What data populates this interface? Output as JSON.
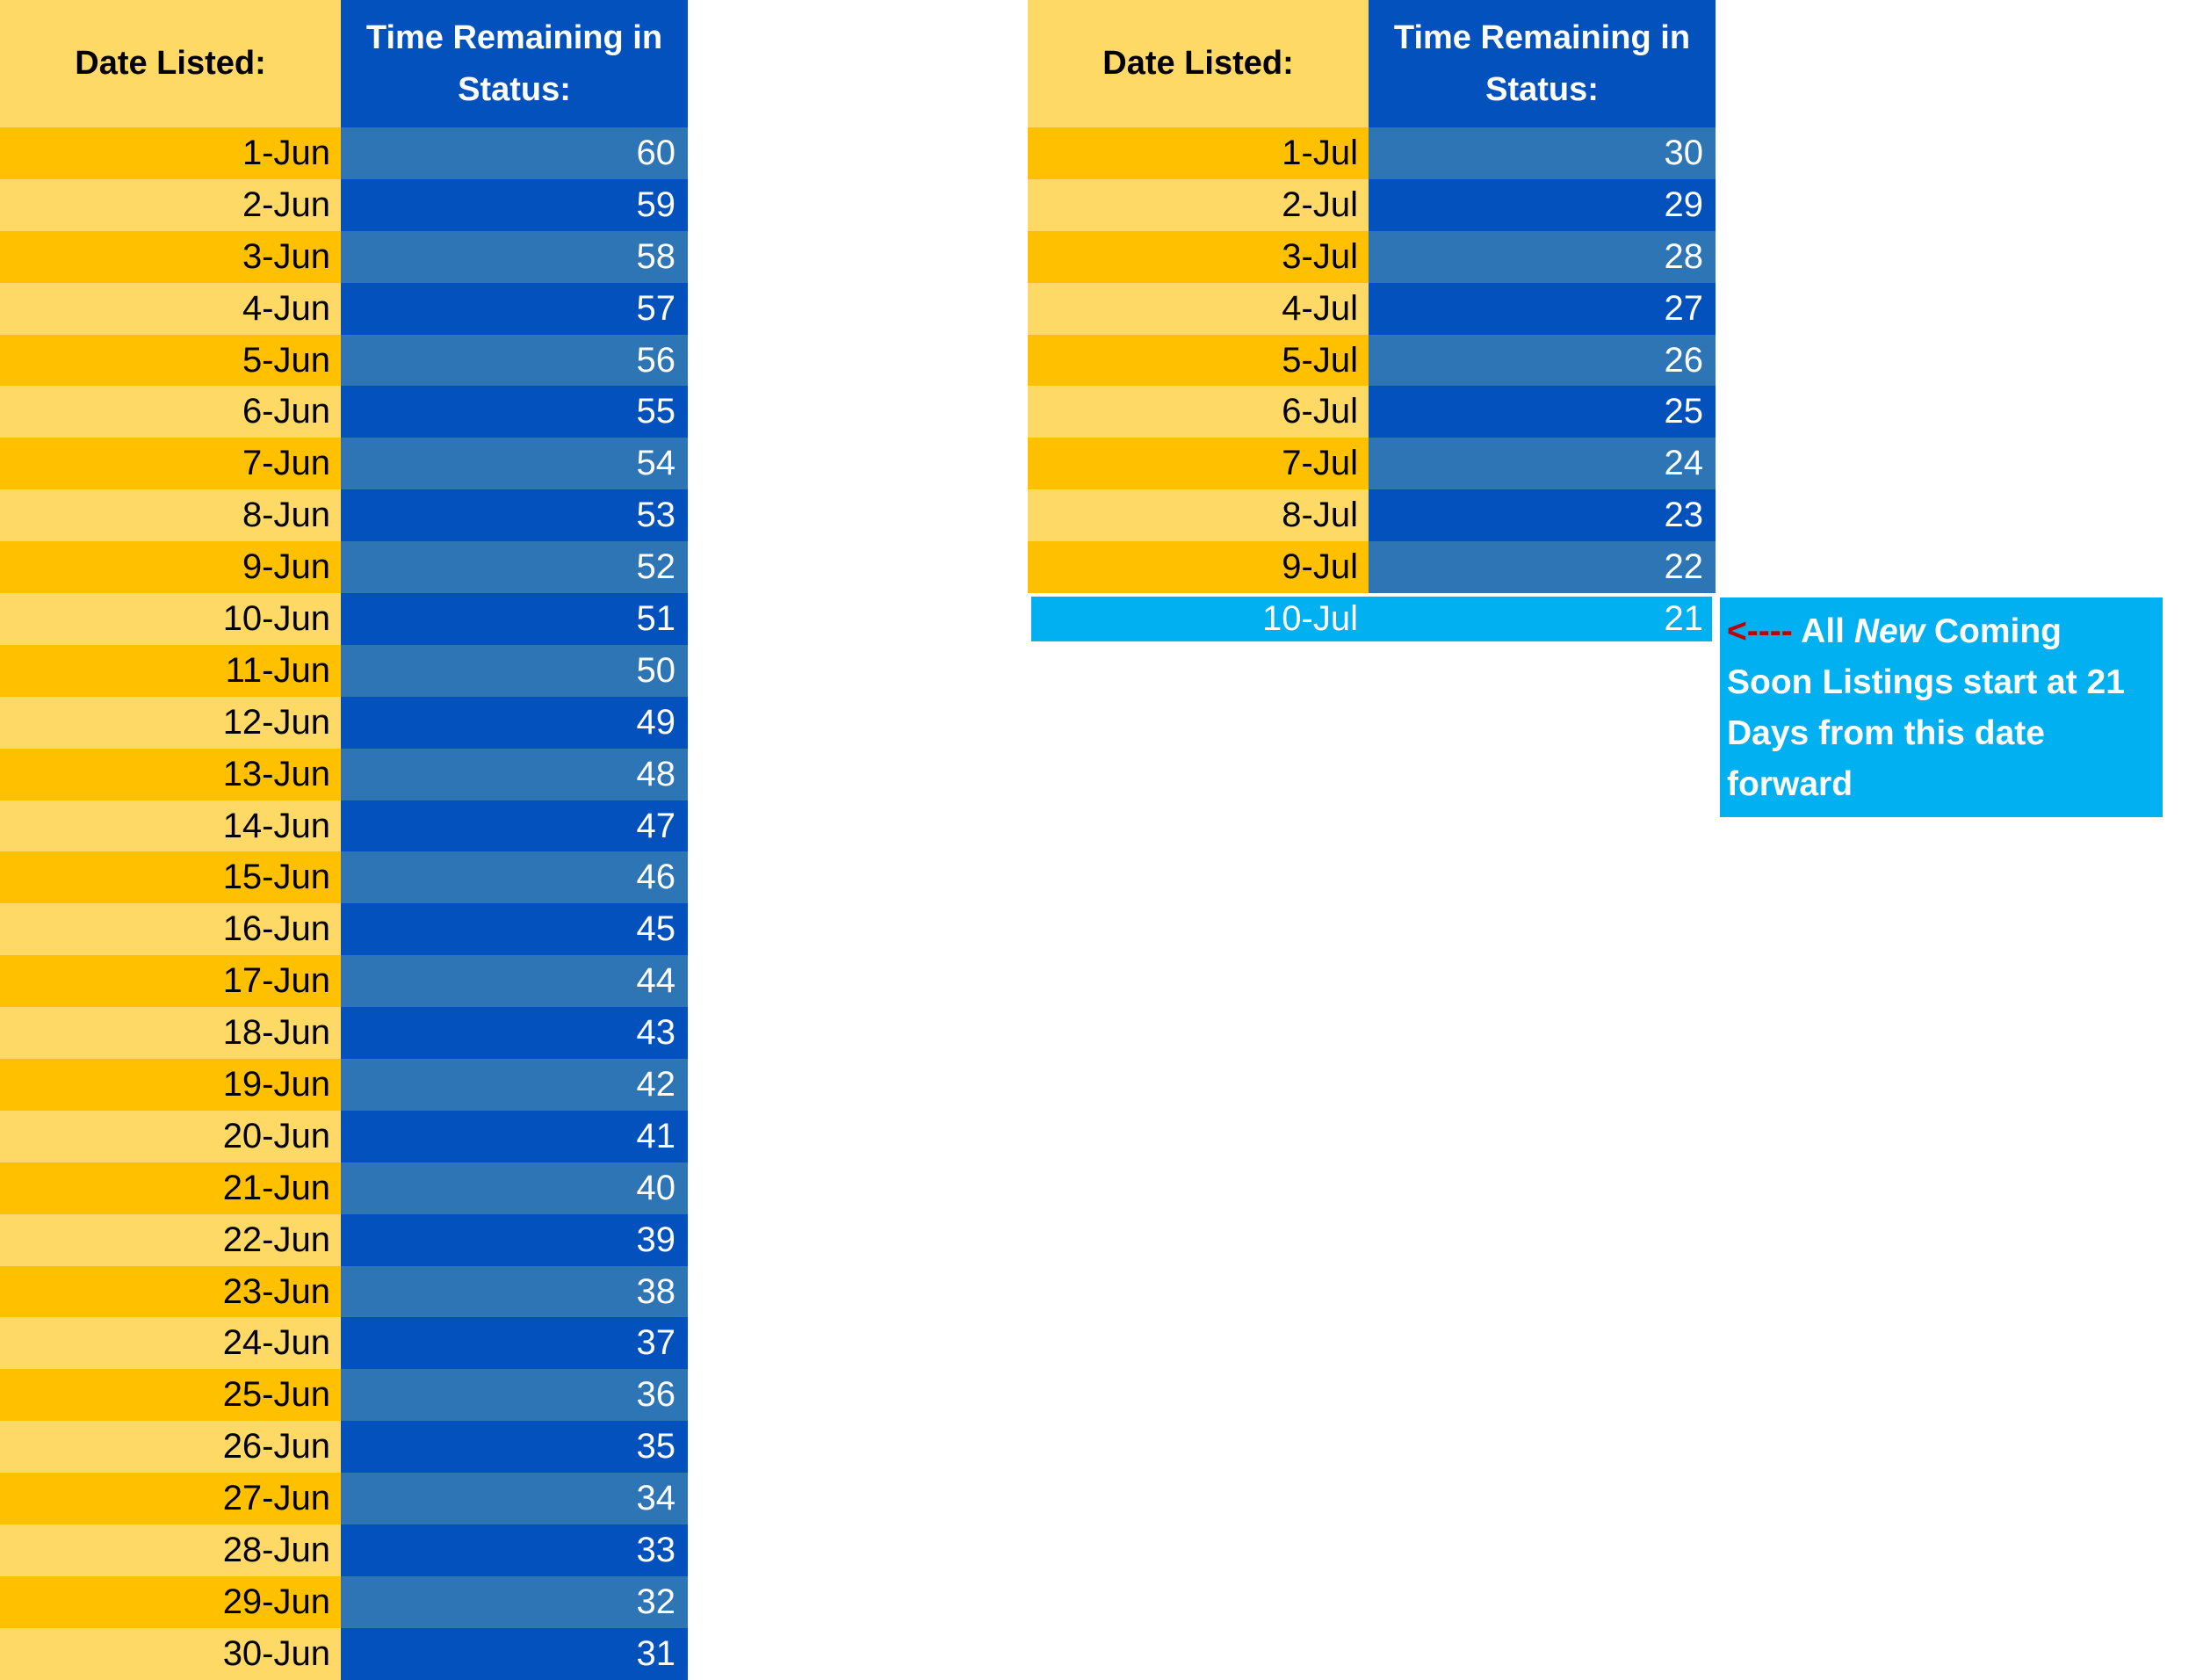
{
  "june_table": {
    "header": {
      "date": "Date Listed:",
      "value": "Time Remaining in Status:"
    },
    "rows": [
      {
        "date": "1-Jun",
        "value": "60"
      },
      {
        "date": "2-Jun",
        "value": "59"
      },
      {
        "date": "3-Jun",
        "value": "58"
      },
      {
        "date": "4-Jun",
        "value": "57"
      },
      {
        "date": "5-Jun",
        "value": "56"
      },
      {
        "date": "6-Jun",
        "value": "55"
      },
      {
        "date": "7-Jun",
        "value": "54"
      },
      {
        "date": "8-Jun",
        "value": "53"
      },
      {
        "date": "9-Jun",
        "value": "52"
      },
      {
        "date": "10-Jun",
        "value": "51"
      },
      {
        "date": "11-Jun",
        "value": "50"
      },
      {
        "date": "12-Jun",
        "value": "49"
      },
      {
        "date": "13-Jun",
        "value": "48"
      },
      {
        "date": "14-Jun",
        "value": "47"
      },
      {
        "date": "15-Jun",
        "value": "46"
      },
      {
        "date": "16-Jun",
        "value": "45"
      },
      {
        "date": "17-Jun",
        "value": "44"
      },
      {
        "date": "18-Jun",
        "value": "43"
      },
      {
        "date": "19-Jun",
        "value": "42"
      },
      {
        "date": "20-Jun",
        "value": "41"
      },
      {
        "date": "21-Jun",
        "value": "40"
      },
      {
        "date": "22-Jun",
        "value": "39"
      },
      {
        "date": "23-Jun",
        "value": "38"
      },
      {
        "date": "24-Jun",
        "value": "37"
      },
      {
        "date": "25-Jun",
        "value": "36"
      },
      {
        "date": "26-Jun",
        "value": "35"
      },
      {
        "date": "27-Jun",
        "value": "34"
      },
      {
        "date": "28-Jun",
        "value": "33"
      },
      {
        "date": "29-Jun",
        "value": "32"
      },
      {
        "date": "30-Jun",
        "value": "31"
      }
    ]
  },
  "july_table": {
    "header": {
      "date": "Date Listed:",
      "value": "Time Remaining in Status:"
    },
    "rows": [
      {
        "date": "1-Jul",
        "value": "30"
      },
      {
        "date": "2-Jul",
        "value": "29"
      },
      {
        "date": "3-Jul",
        "value": "28"
      },
      {
        "date": "4-Jul",
        "value": "27"
      },
      {
        "date": "5-Jul",
        "value": "26"
      },
      {
        "date": "6-Jul",
        "value": "25"
      },
      {
        "date": "7-Jul",
        "value": "24"
      },
      {
        "date": "8-Jul",
        "value": "23"
      },
      {
        "date": "9-Jul",
        "value": "22"
      }
    ],
    "highlight_row": {
      "date": "10-Jul",
      "value": "21"
    }
  },
  "note": {
    "arrow": "<----",
    "text_before": "All",
    "emphasis": "New",
    "text_after": "Coming Soon Listings start at 21 Days from this date forward"
  },
  "colors": {
    "header_date_bg": "#ffd966",
    "header_value_bg": "#0351bd",
    "date_odd_bg": "#ffc000",
    "date_even_bg": "#ffd966",
    "value_odd_bg": "#2e75b6",
    "value_even_bg": "#0351bd",
    "highlight_bg": "#00b0f0",
    "arrow_color": "#c00000"
  }
}
